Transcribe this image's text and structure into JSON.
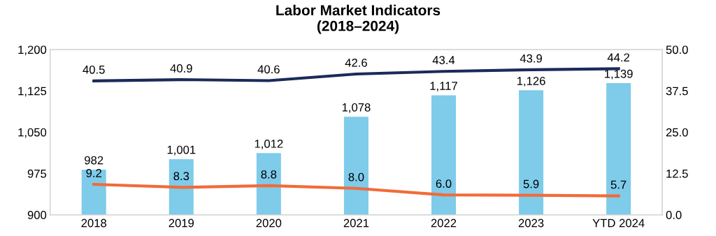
{
  "chart_data": {
    "type": "bar",
    "title": "Labor Market Indicators\n(2018–2024)",
    "categories": [
      "2018",
      "2019",
      "2020",
      "2021",
      "2022",
      "2023",
      "YTD 2024"
    ],
    "series": [
      {
        "color": "#7ecbea",
        "values": [
          982,
          1001,
          1012,
          1078,
          1117,
          1126,
          1139
        ],
        "value_labels": [
          "982",
          "1,001",
          "1,012",
          "1,078",
          "1,117",
          "1,126",
          "1,139"
        ]
      },
      {
        "type": "line",
        "axis": "y2",
        "color": "#1b2a5a",
        "values": [
          40.5,
          40.9,
          40.6,
          42.6,
          43.4,
          43.9,
          44.2
        ],
        "value_labels": [
          "40.5",
          "40.9",
          "40.6",
          "42.6",
          "43.4",
          "43.9",
          "44.2"
        ]
      },
      {
        "type": "line",
        "axis": "y2",
        "color": "#f26b38",
        "values": [
          9.2,
          8.3,
          8.8,
          8.0,
          6.0,
          5.9,
          5.7
        ],
        "value_labels": [
          "9.2",
          "8.3",
          "8.8",
          "8.0",
          "6.0",
          "5.9",
          "5.7"
        ]
      }
    ],
    "ylim": [
      900,
      1200
    ],
    "yticks": [
      {
        "value": 900,
        "label": "900"
      },
      {
        "value": 975,
        "label": "975"
      },
      {
        "value": 1050,
        "label": "1,050"
      },
      {
        "value": 1125,
        "label": "1,125"
      },
      {
        "value": 1200,
        "label": "1,200"
      }
    ],
    "y2lim": [
      0,
      50
    ],
    "y2ticks": [
      {
        "value": 0,
        "label": "0.0"
      },
      {
        "value": 12.5,
        "label": "12.5"
      },
      {
        "value": 25,
        "label": "25.0"
      },
      {
        "value": 37.5,
        "label": "37.5"
      },
      {
        "value": 50,
        "label": "50.0"
      }
    ],
    "grid": false,
    "legend": false
  }
}
